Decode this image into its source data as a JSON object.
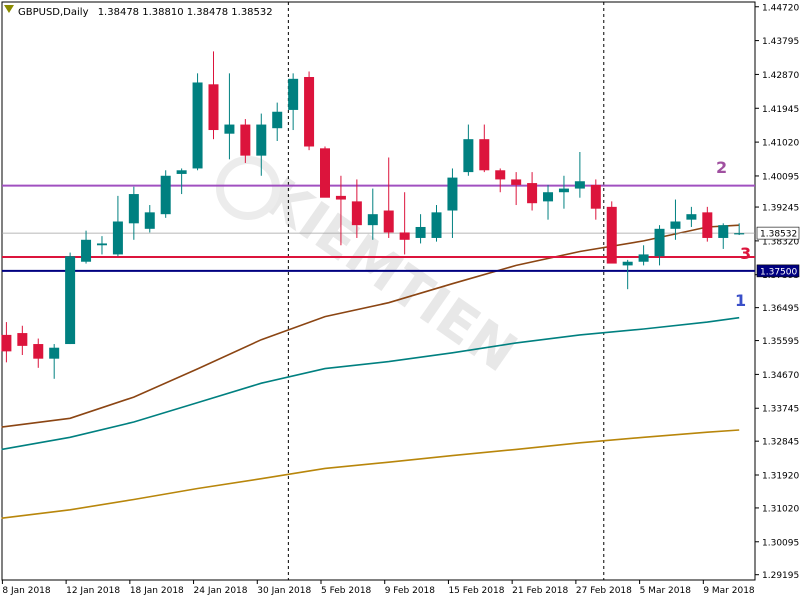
{
  "header": {
    "symbol": "GBPUSD,Daily",
    "ohlc": "1.38478 1.38810 1.38478 1.38532"
  },
  "colors": {
    "bull": "#008080",
    "bear": "#dc143c",
    "ma_fast": "#8b4513",
    "ma_mid": "#008080",
    "ma_slow": "#b8860b",
    "level_1": "#000080",
    "level_2": "#a050c0",
    "level_3": "#dc143c",
    "label_1": "#3a4fc8",
    "label_2": "#a050a0",
    "label_3": "#dc143c"
  },
  "chart_data": {
    "type": "candlestick",
    "ylim": [
      1.2905,
      1.4485
    ],
    "y_ticks": [
      1.4472,
      1.43795,
      1.4287,
      1.41945,
      1.4102,
      1.40095,
      1.39245,
      1.3832,
      1.37395,
      1.36495,
      1.35595,
      1.3467,
      1.33745,
      1.32845,
      1.3192,
      1.3102,
      1.30095,
      1.29195
    ],
    "y_tick_labels": [
      "1.44720",
      "1.43795",
      "1.42870",
      "1.41945",
      "1.41020",
      "1.40095",
      "1.39245",
      "1.38320",
      "1.37395",
      "1.36495",
      "1.35595",
      "1.34670",
      "1.33745",
      "1.32845",
      "1.31920",
      "1.31020",
      "1.30095",
      "1.29195"
    ],
    "x_labels": [
      {
        "i": 0,
        "label": "8 Jan 2018"
      },
      {
        "i": 4,
        "label": "12 Jan 2018"
      },
      {
        "i": 8,
        "label": "18 Jan 2018"
      },
      {
        "i": 12,
        "label": "24 Jan 2018"
      },
      {
        "i": 16,
        "label": "30 Jan 2018"
      },
      {
        "i": 20,
        "label": "5 Feb 2018"
      },
      {
        "i": 24,
        "label": "9 Feb 2018"
      },
      {
        "i": 28,
        "label": "15 Feb 2018"
      },
      {
        "i": 32,
        "label": "21 Feb 2018"
      },
      {
        "i": 36,
        "label": "27 Feb 2018"
      },
      {
        "i": 40,
        "label": "5 Mar 2018"
      },
      {
        "i": 44,
        "label": "9 Mar 2018"
      }
    ],
    "separators": [
      17.7,
      37.5
    ],
    "candles": [
      [
        1.3575,
        1.361,
        1.35,
        1.353
      ],
      [
        1.358,
        1.36,
        1.352,
        1.3545
      ],
      [
        1.355,
        1.3565,
        1.3485,
        1.351
      ],
      [
        1.351,
        1.355,
        1.3455,
        1.354
      ],
      [
        1.355,
        1.38,
        1.355,
        1.379
      ],
      [
        1.3775,
        1.386,
        1.377,
        1.3835
      ],
      [
        1.382,
        1.3845,
        1.3795,
        1.3825
      ],
      [
        1.3795,
        1.3955,
        1.379,
        1.3885
      ],
      [
        1.388,
        1.398,
        1.3835,
        1.396
      ],
      [
        1.3865,
        1.393,
        1.3855,
        1.391
      ],
      [
        1.3905,
        1.4025,
        1.3895,
        1.401
      ],
      [
        1.4015,
        1.403,
        1.396,
        1.4025
      ],
      [
        1.403,
        1.429,
        1.4025,
        1.4265
      ],
      [
        1.426,
        1.435,
        1.411,
        1.4135
      ],
      [
        1.4125,
        1.429,
        1.4055,
        1.415
      ],
      [
        1.415,
        1.4165,
        1.4045,
        1.4065
      ],
      [
        1.4065,
        1.418,
        1.401,
        1.415
      ],
      [
        1.414,
        1.421,
        1.4105,
        1.4185
      ],
      [
        1.419,
        1.429,
        1.4135,
        1.4275
      ],
      [
        1.428,
        1.4295,
        1.408,
        1.409
      ],
      [
        1.4085,
        1.409,
        1.396,
        1.395
      ],
      [
        1.3955,
        1.401,
        1.382,
        1.3945
      ],
      [
        1.394,
        1.4,
        1.384,
        1.3875
      ],
      [
        1.3875,
        1.3975,
        1.3835,
        1.3905
      ],
      [
        1.3915,
        1.406,
        1.384,
        1.3855
      ],
      [
        1.3855,
        1.3965,
        1.3795,
        1.3835
      ],
      [
        1.384,
        1.3905,
        1.3825,
        1.387
      ],
      [
        1.384,
        1.393,
        1.383,
        1.391
      ],
      [
        1.3915,
        1.403,
        1.384,
        1.4005
      ],
      [
        1.402,
        1.415,
        1.401,
        1.411
      ],
      [
        1.411,
        1.415,
        1.402,
        1.4025
      ],
      [
        1.4025,
        1.403,
        1.3965,
        1.4
      ],
      [
        1.4,
        1.402,
        1.393,
        1.3985
      ],
      [
        1.399,
        1.402,
        1.3915,
        1.3935
      ],
      [
        1.394,
        1.3985,
        1.389,
        1.3965
      ],
      [
        1.3965,
        1.401,
        1.392,
        1.3975
      ],
      [
        1.3975,
        1.4075,
        1.395,
        1.3995
      ],
      [
        1.3985,
        1.4,
        1.389,
        1.392
      ],
      [
        1.3925,
        1.394,
        1.3775,
        1.377
      ],
      [
        1.3765,
        1.378,
        1.37,
        1.3775
      ],
      [
        1.3775,
        1.382,
        1.3765,
        1.3795
      ],
      [
        1.379,
        1.3875,
        1.3765,
        1.3865
      ],
      [
        1.3865,
        1.3945,
        1.3835,
        1.3885
      ],
      [
        1.389,
        1.3925,
        1.387,
        1.3905
      ],
      [
        1.391,
        1.3925,
        1.383,
        1.384
      ],
      [
        1.384,
        1.388,
        1.381,
        1.3875
      ],
      [
        1.385,
        1.388,
        1.3848,
        1.3853
      ]
    ],
    "ma_fast": [
      [
        -0.3,
        1.3323
      ],
      [
        4,
        1.3347
      ],
      [
        8,
        1.3405
      ],
      [
        12,
        1.3482
      ],
      [
        16,
        1.3562
      ],
      [
        20,
        1.3625
      ],
      [
        24,
        1.3663
      ],
      [
        28,
        1.3715
      ],
      [
        32,
        1.3765
      ],
      [
        36,
        1.3803
      ],
      [
        40,
        1.3832
      ],
      [
        44,
        1.387
      ],
      [
        46,
        1.3875
      ]
    ],
    "ma_mid": [
      [
        -0.3,
        1.3262
      ],
      [
        4,
        1.3295
      ],
      [
        8,
        1.3337
      ],
      [
        12,
        1.339
      ],
      [
        16,
        1.3443
      ],
      [
        20,
        1.3483
      ],
      [
        24,
        1.3502
      ],
      [
        28,
        1.3526
      ],
      [
        32,
        1.3553
      ],
      [
        36,
        1.3575
      ],
      [
        40,
        1.3591
      ],
      [
        44,
        1.361
      ],
      [
        46,
        1.3622
      ]
    ],
    "ma_slow": [
      [
        -0.3,
        1.3074
      ],
      [
        4,
        1.3097
      ],
      [
        8,
        1.3125
      ],
      [
        12,
        1.3155
      ],
      [
        16,
        1.3182
      ],
      [
        20,
        1.321
      ],
      [
        24,
        1.3227
      ],
      [
        28,
        1.3245
      ],
      [
        32,
        1.3262
      ],
      [
        36,
        1.328
      ],
      [
        40,
        1.3295
      ],
      [
        44,
        1.3309
      ],
      [
        46,
        1.3315
      ]
    ],
    "levels": [
      {
        "id": 1,
        "value": 1.375,
        "label": "1.37500",
        "number": "1"
      },
      {
        "id": 2,
        "value": 1.3983,
        "number": "2"
      },
      {
        "id": 3,
        "value": 1.3788,
        "number": "3"
      }
    ],
    "current_price": {
      "value": 1.38532,
      "label": "1.38532"
    }
  }
}
